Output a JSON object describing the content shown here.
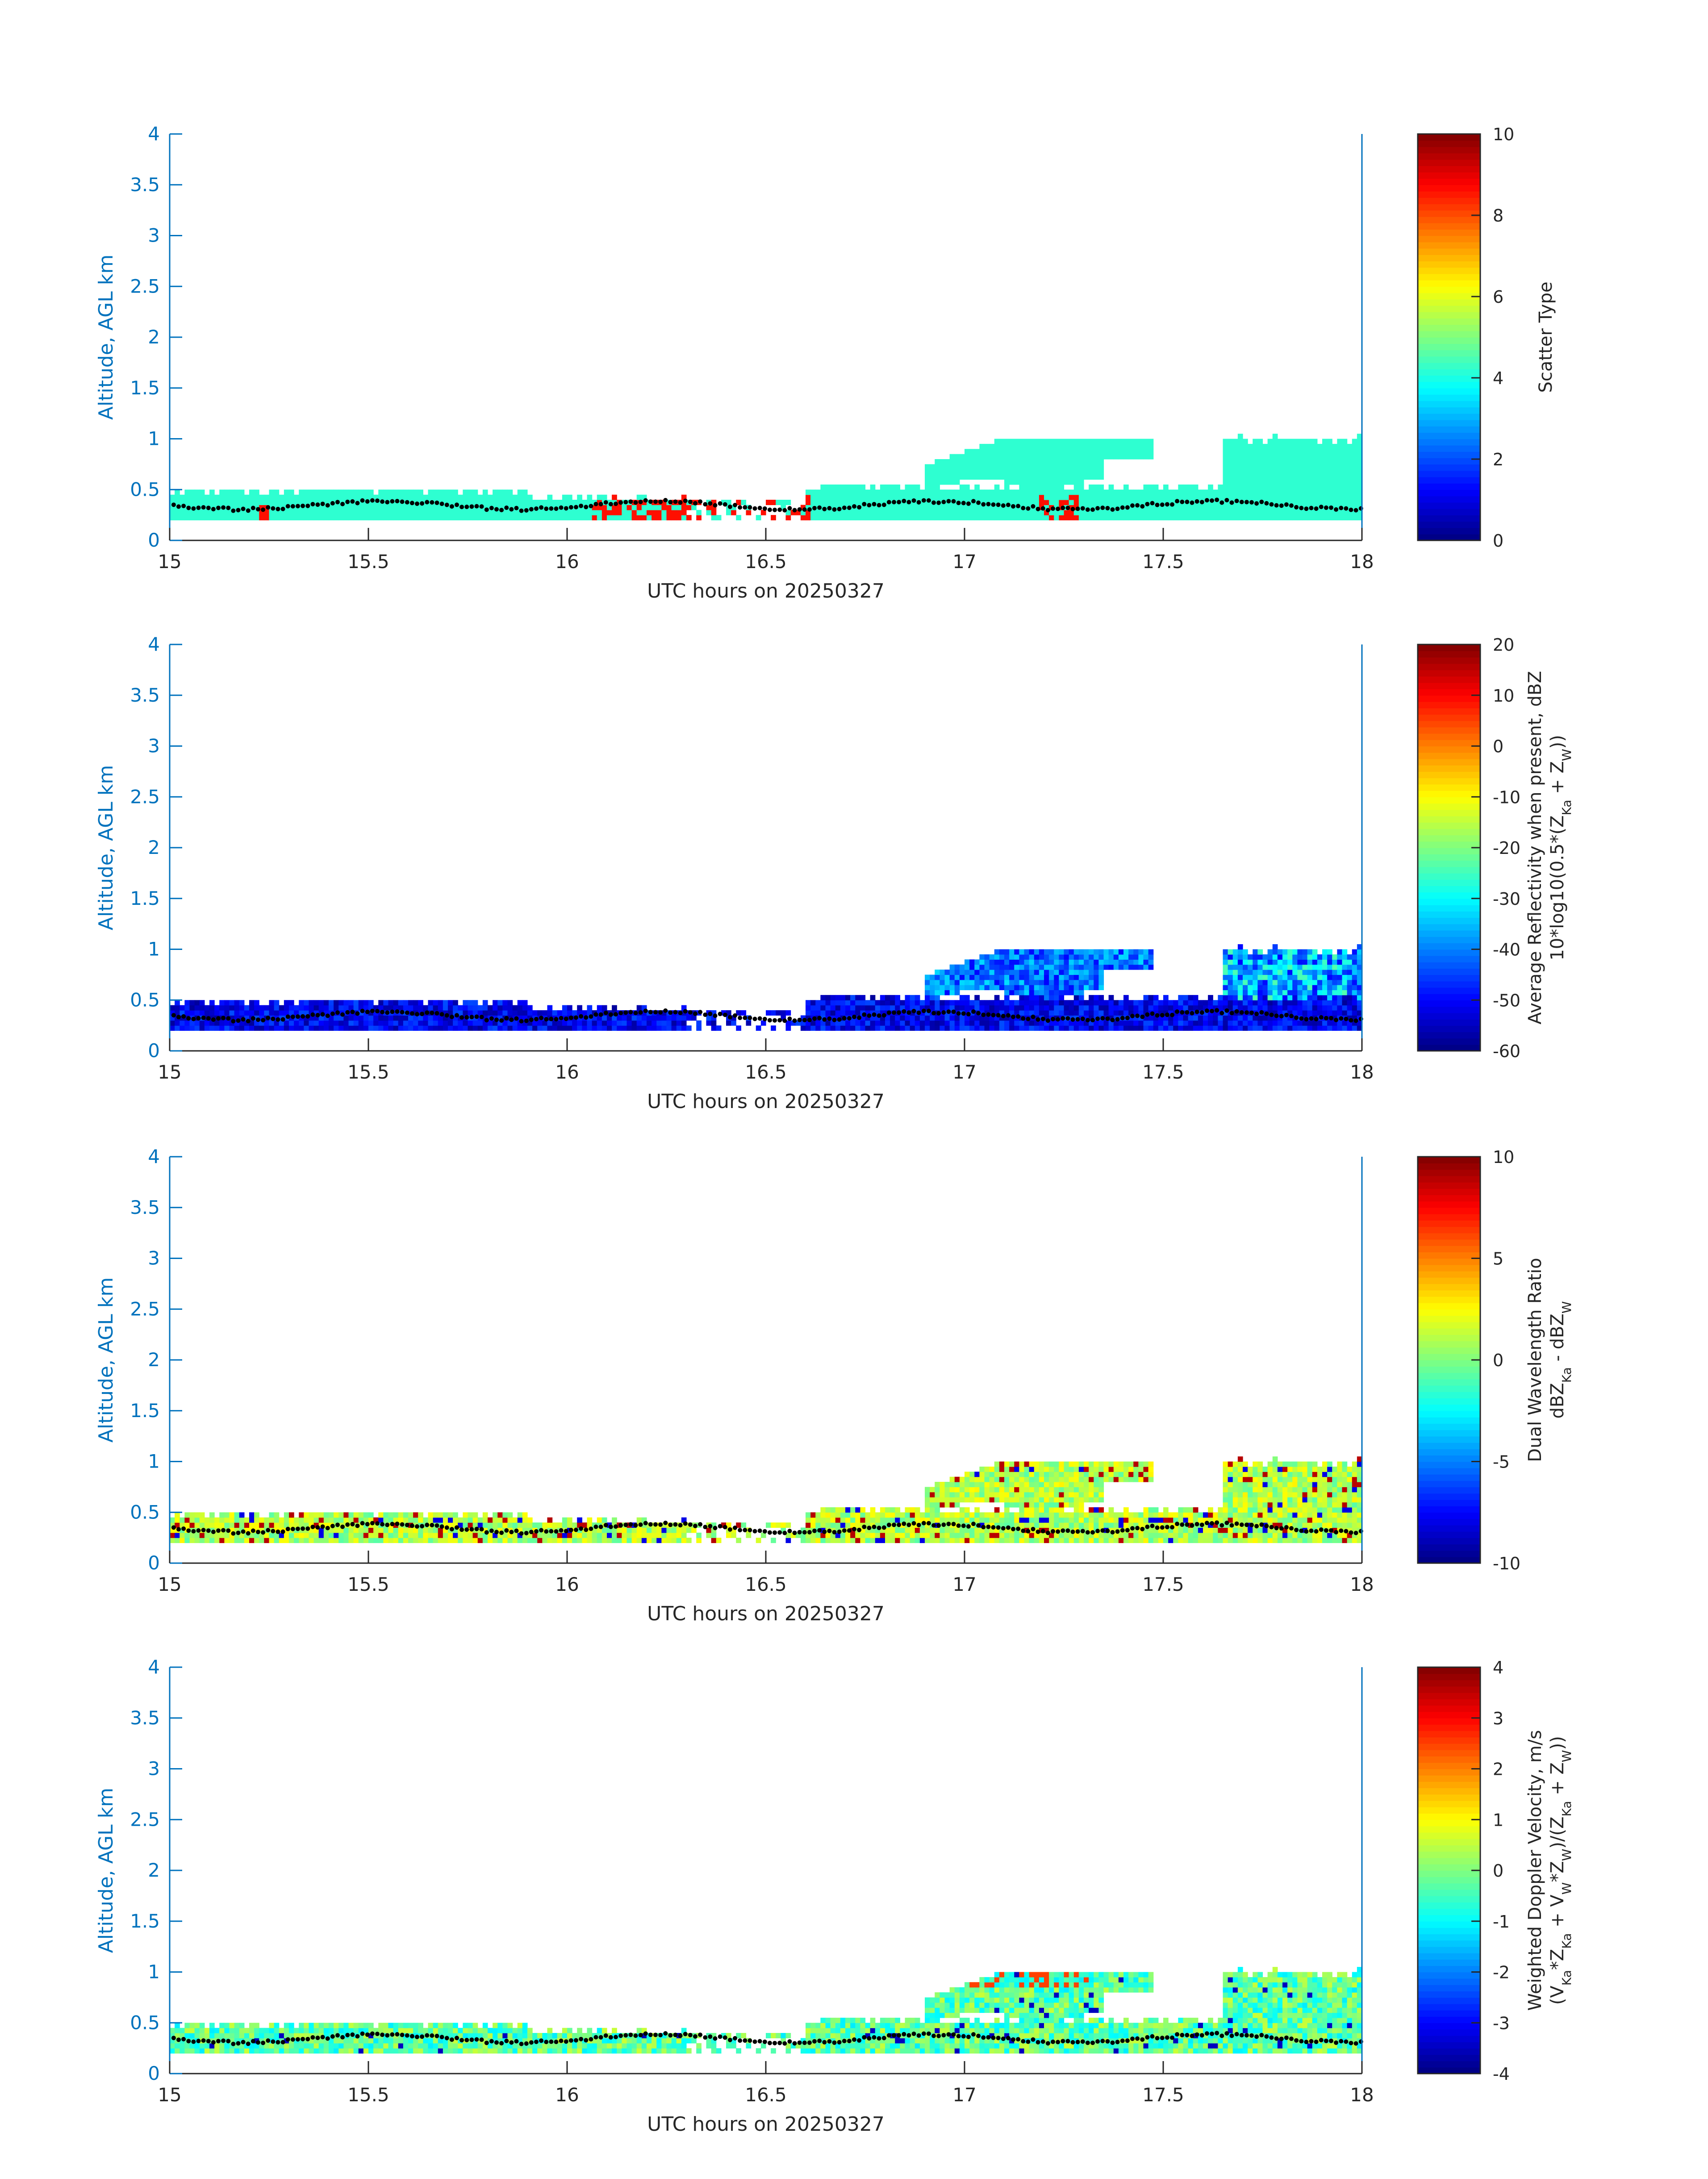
{
  "figure": {
    "xlabel": "UTC hours on 20250327",
    "ylabel": "Altitude, AGL km",
    "axis_color": "#0072bd",
    "text_color": "#262626"
  },
  "chart_data": [
    {
      "type": "heatmap",
      "title": "",
      "xlabel": "UTC hours on 20250327",
      "ylabel": "Altitude, AGL km",
      "xlim": [
        15,
        18
      ],
      "ylim": [
        0,
        4
      ],
      "x_ticks": [
        "15",
        "15.5",
        "16",
        "16.5",
        "17",
        "17.5",
        "18"
      ],
      "y_ticks": [
        "0",
        "0.5",
        "1",
        "1.5",
        "2",
        "2.5",
        "3",
        "3.5",
        "4"
      ],
      "colorbar": {
        "label_lines": [
          "Scatter Type"
        ],
        "min": 0,
        "max": 10,
        "ticks": [
          "0",
          "2",
          "4",
          "6",
          "8",
          "10"
        ]
      },
      "dominant_value": 4.2,
      "note_values": "Cloud layer ~0.2-0.55 km at 15-18 h mostly value ~4 (cyan); orange (~8.5) columns near 16.1-16.6 h and 17.2 h; upper layer 0.55-1.0 km from 16.9 h"
    },
    {
      "type": "heatmap",
      "title": "",
      "xlabel": "UTC hours on 20250327",
      "ylabel": "Altitude, AGL km",
      "xlim": [
        15,
        18
      ],
      "ylim": [
        0,
        4
      ],
      "x_ticks": [
        "15",
        "15.5",
        "16",
        "16.5",
        "17",
        "17.5",
        "18"
      ],
      "y_ticks": [
        "0",
        "0.5",
        "1",
        "1.5",
        "2",
        "2.5",
        "3",
        "3.5",
        "4"
      ],
      "colorbar": {
        "label_lines": [
          "Average Reflectivity when present, dBZ",
          "10*log10(0.5*(Z",
          "Ka",
          " + Z",
          "W",
          "))"
        ],
        "min": -60,
        "max": 20,
        "ticks": [
          "-60",
          "-50",
          "-40",
          "-30",
          "-20",
          "-10",
          "0",
          "10",
          "20"
        ]
      },
      "dominant_value": -55,
      "note_values": "Reflectivity mostly -60 to -45 dBZ in lower layer; -35 to -25 dBZ in upper layer 17.7-18 h"
    },
    {
      "type": "heatmap",
      "title": "",
      "xlabel": "UTC hours on 20250327",
      "ylabel": "Altitude, AGL km",
      "xlim": [
        15,
        18
      ],
      "ylim": [
        0,
        4
      ],
      "x_ticks": [
        "15",
        "15.5",
        "16",
        "16.5",
        "17",
        "17.5",
        "18"
      ],
      "y_ticks": [
        "0",
        "0.5",
        "1",
        "1.5",
        "2",
        "2.5",
        "3",
        "3.5",
        "4"
      ],
      "colorbar": {
        "label_lines": [
          "Dual Wavelength Ratio",
          "dBZ",
          "Ka",
          " - dBZ",
          "W"
        ],
        "min": -10,
        "max": 10,
        "ticks": [
          "-10",
          "-5",
          "0",
          "5",
          "10"
        ]
      },
      "dominant_value": 0.5,
      "note_values": "DWR mostly -2 to 3 dB; gap 16.2-16.6 h except sparse points"
    },
    {
      "type": "heatmap",
      "title": "",
      "xlabel": "UTC hours on 20250327",
      "ylabel": "Altitude, AGL km",
      "xlim": [
        15,
        18
      ],
      "ylim": [
        0,
        4
      ],
      "x_ticks": [
        "15",
        "15.5",
        "16",
        "16.5",
        "17",
        "17.5",
        "18"
      ],
      "y_ticks": [
        "0",
        "0.5",
        "1",
        "1.5",
        "2",
        "2.5",
        "3",
        "3.5",
        "4"
      ],
      "colorbar": {
        "label_lines": [
          "Weighted Doppler Velocity, m/s",
          "(V",
          "Ka",
          "*Z",
          "Ka",
          " + V",
          "W",
          "*Z",
          "W",
          ")/(Z",
          "Ka",
          " + Z",
          "W",
          "))"
        ],
        "min": -4,
        "max": 4,
        "ticks": [
          "-4",
          "-3",
          "-2",
          "-1",
          "0",
          "1",
          "2",
          "3",
          "4"
        ]
      },
      "dominant_value": -0.5,
      "note_values": "Doppler velocity mostly -1 to 0.5 m/s; positive values (yellow/red) near top of upper layer 17.0-17.3 h"
    }
  ]
}
